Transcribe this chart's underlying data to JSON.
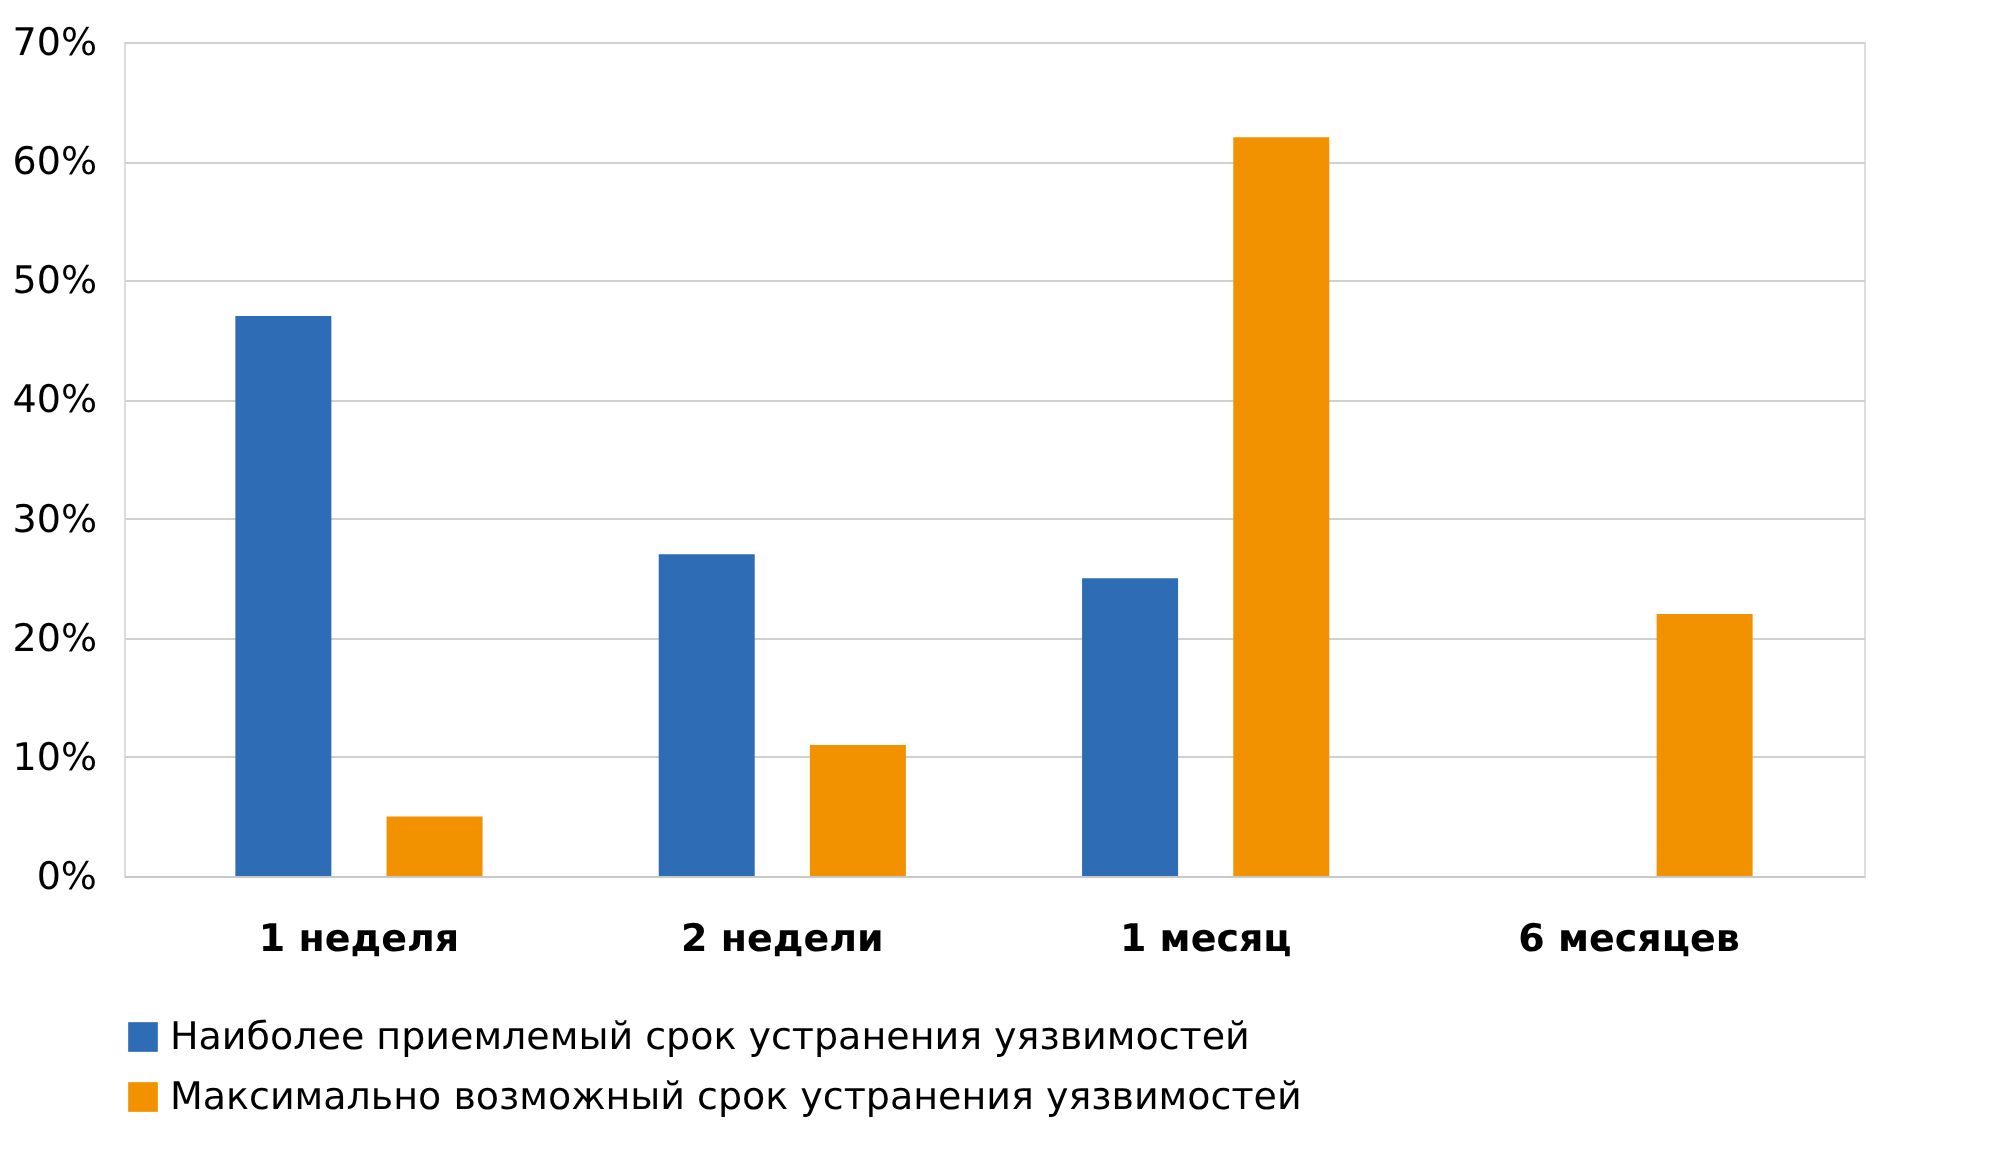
{
  "chart_data": {
    "type": "bar",
    "categories": [
      "1 неделя",
      "2 недели",
      "1 месяц",
      "6 месяцев"
    ],
    "series": [
      {
        "name": "Наиболее приемлемый срок устранения уязвимостей",
        "color": "#2e6db5",
        "values": [
          47,
          27,
          25,
          null
        ]
      },
      {
        "name": "Максимально возможный срок устранения уязвимостей",
        "color": "#f39200",
        "values": [
          5,
          11,
          62,
          22
        ]
      }
    ],
    "ylim": [
      0,
      70
    ],
    "yticks": [
      {
        "value": 0,
        "label": "0%"
      },
      {
        "value": 10,
        "label": "10%"
      },
      {
        "value": 20,
        "label": "20%"
      },
      {
        "value": 30,
        "label": "30%"
      },
      {
        "value": 40,
        "label": "40%"
      },
      {
        "value": 50,
        "label": "50%"
      },
      {
        "value": 60,
        "label": "60%"
      },
      {
        "value": 70,
        "label": "70%"
      }
    ],
    "grid": "y",
    "legend": "bottom"
  }
}
